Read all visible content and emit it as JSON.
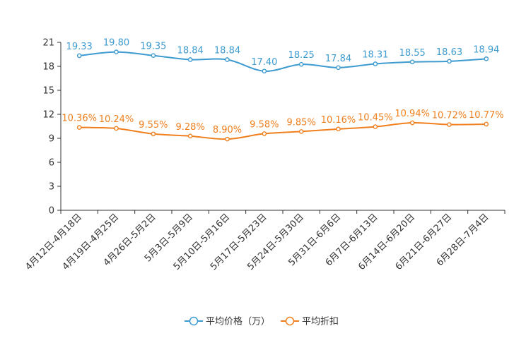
{
  "chart_data": {
    "type": "line",
    "title": "",
    "xlabel": "",
    "ylabel": "",
    "categories": [
      "4月12日-4月18日",
      "4月19日-4月25日",
      "4月26日-5月2日",
      "5月3日-5月9日",
      "5月10日-5月16日",
      "5月17日-5月23日",
      "5月24日-5月30日",
      "5月31日-6月6日",
      "6月7日-6月13日",
      "6月14日-6月20日",
      "6月21日-6月27日",
      "6月28日-7月4日"
    ],
    "ylim": [
      0,
      21
    ],
    "yticks": [
      "0",
      "3",
      "6",
      "9",
      "12",
      "15",
      "18",
      "21"
    ],
    "grid": false,
    "legend_position": "bottom-center",
    "series": [
      {
        "name": "平均价格（万）",
        "color": "#3d9bd0",
        "values": [
          19.33,
          19.8,
          19.35,
          18.84,
          18.84,
          17.4,
          18.25,
          17.84,
          18.31,
          18.55,
          18.63,
          18.94
        ],
        "labels": [
          "19.33",
          "19.80",
          "19.35",
          "18.84",
          "18.84",
          "17.40",
          "18.25",
          "17.84",
          "18.31",
          "18.55",
          "18.63",
          "18.94"
        ]
      },
      {
        "name": "平均折扣",
        "color": "#f07f1e",
        "values": [
          10.36,
          10.24,
          9.55,
          9.28,
          8.9,
          9.58,
          9.85,
          10.16,
          10.45,
          10.94,
          10.72,
          10.77
        ],
        "labels": [
          "10.36%",
          "10.24%",
          "9.55%",
          "9.28%",
          "8.90%",
          "9.58%",
          "9.85%",
          "10.16%",
          "10.45%",
          "10.94%",
          "10.72%",
          "10.77%"
        ]
      }
    ]
  }
}
